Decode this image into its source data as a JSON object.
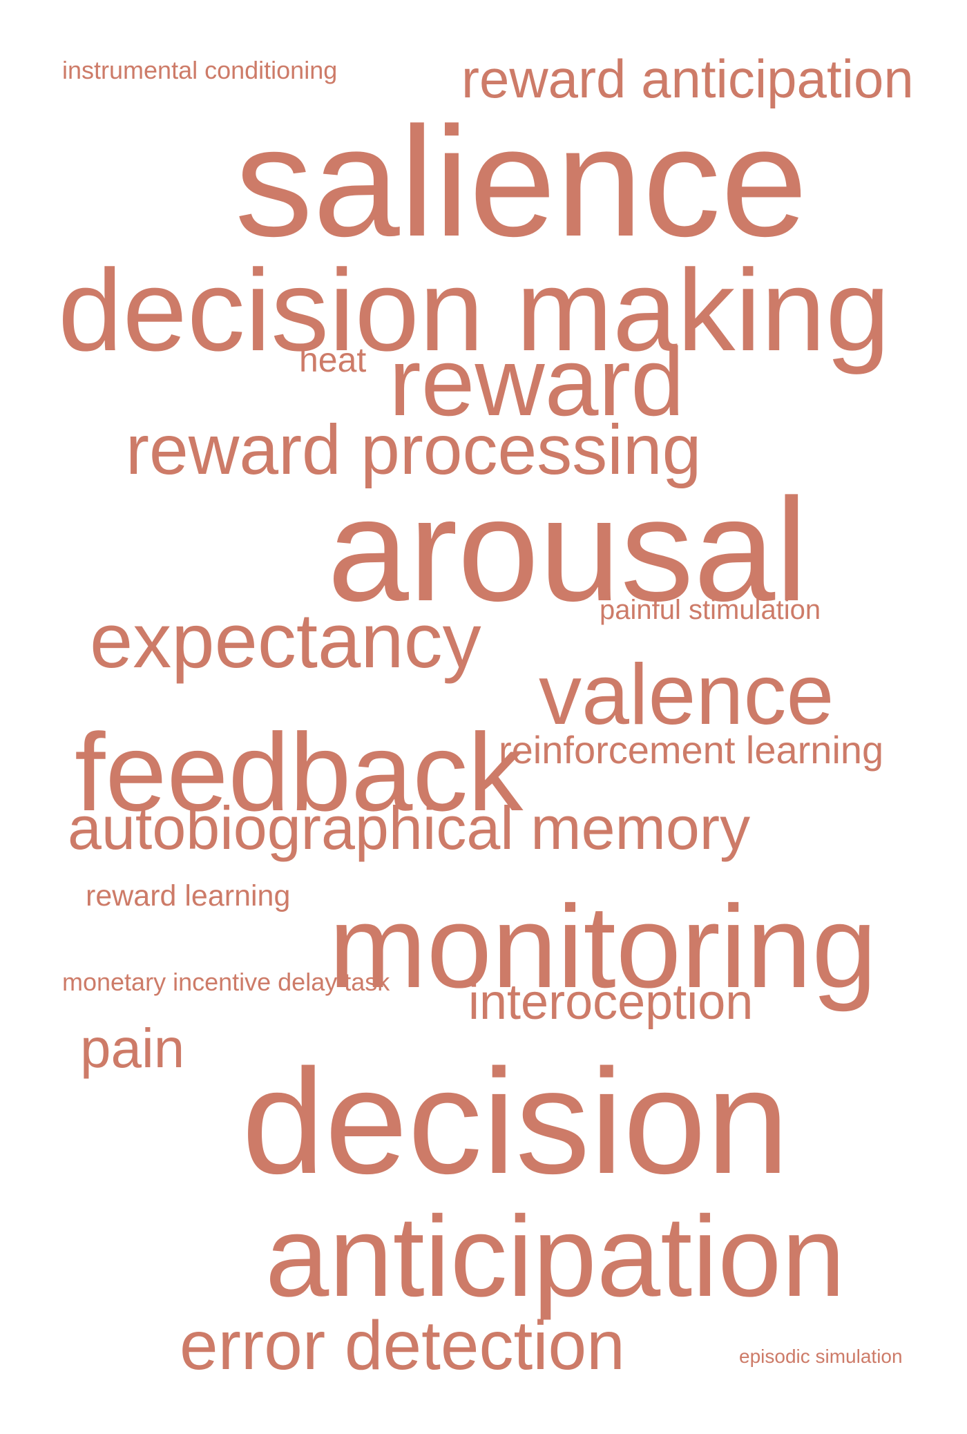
{
  "accent_color": "#cd7b68",
  "words": [
    {
      "id": "instrumental-conditioning",
      "text": "instrumental conditioning"
    },
    {
      "id": "reward-anticipation",
      "text": "reward anticipation"
    },
    {
      "id": "salience",
      "text": "salience"
    },
    {
      "id": "decision-making",
      "text": "decision making"
    },
    {
      "id": "heat",
      "text": "heat"
    },
    {
      "id": "reward",
      "text": "reward"
    },
    {
      "id": "reward-processing",
      "text": "reward processing"
    },
    {
      "id": "arousal",
      "text": "arousal"
    },
    {
      "id": "painful-stimulation",
      "text": "painful stimulation"
    },
    {
      "id": "expectancy",
      "text": "expectancy"
    },
    {
      "id": "valence",
      "text": "valence"
    },
    {
      "id": "feedback",
      "text": "feedback"
    },
    {
      "id": "reinforcement-learning",
      "text": "reinforcement learning"
    },
    {
      "id": "autobiographical-memory",
      "text": "autobiographical memory"
    },
    {
      "id": "reward-learning",
      "text": "reward learning"
    },
    {
      "id": "monitoring",
      "text": "monitoring"
    },
    {
      "id": "monetary-incentive-delay-task",
      "text": "monetary incentive delay task"
    },
    {
      "id": "interoception",
      "text": "interoception"
    },
    {
      "id": "pain",
      "text": "pain"
    },
    {
      "id": "decision",
      "text": "decision"
    },
    {
      "id": "anticipation",
      "text": "anticipation"
    },
    {
      "id": "error-detection",
      "text": "error detection"
    },
    {
      "id": "episodic-simulation",
      "text": "episodic simulation"
    }
  ]
}
